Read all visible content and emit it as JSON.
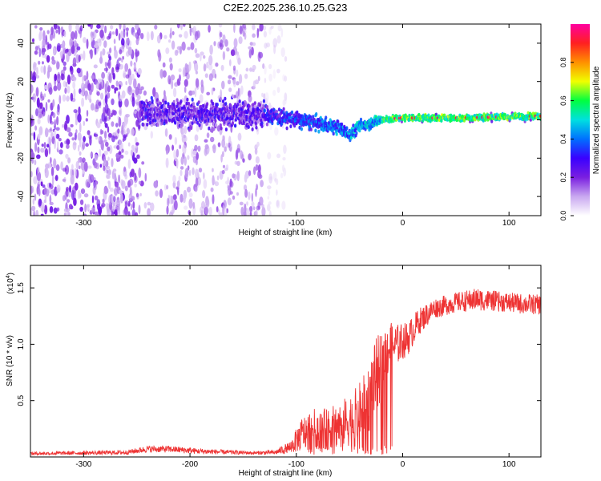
{
  "title": "C2E2.2025.236.10.25.G23",
  "colors": {
    "snr_line": "#ee3333",
    "frame": "#000000"
  },
  "chart_data": [
    {
      "type": "heatmap",
      "name": "spectrogram",
      "xlabel": "Height of straight line (km)",
      "ylabel": "Frequency (Hz)",
      "xlim": [
        -350,
        130
      ],
      "ylim": [
        -50,
        50
      ],
      "xticks": [
        -300,
        -200,
        -100,
        0,
        100
      ],
      "xtick_labels": [
        "-300",
        "-200",
        "-100",
        "0",
        "100"
      ],
      "yticks": [
        -40,
        -20,
        0,
        20,
        40
      ],
      "ytick_labels": [
        "-40",
        "-20",
        "0",
        "20",
        "40"
      ],
      "signal_track": [
        {
          "x": -245,
          "y": 4
        },
        {
          "x": -200,
          "y": 3
        },
        {
          "x": -130,
          "y": 3
        },
        {
          "x": -100,
          "y": 0
        },
        {
          "x": -80,
          "y": -2
        },
        {
          "x": -60,
          "y": -4
        },
        {
          "x": -50,
          "y": -8
        },
        {
          "x": -40,
          "y": -3
        },
        {
          "x": -20,
          "y": 0
        },
        {
          "x": 0,
          "y": 1
        },
        {
          "x": 50,
          "y": 1
        },
        {
          "x": 130,
          "y": 2
        }
      ],
      "noise_regions": [
        {
          "x_start": -350,
          "x_end": -245,
          "density": "high"
        },
        {
          "x_start": -245,
          "x_end": -130,
          "density": "medium"
        },
        {
          "x_start": -130,
          "x_end": -110,
          "density": "low"
        }
      ],
      "colorbar": {
        "label": "Normalized spectral amplitude",
        "range": [
          0,
          1
        ],
        "ticks": [
          0.0,
          0.2,
          0.4,
          0.6,
          0.8
        ],
        "tick_labels": [
          "0.0",
          "0.2",
          "0.4",
          "0.6",
          "0.8"
        ],
        "colormap": [
          "#ffffff",
          "#c9a8f0",
          "#7a1fe0",
          "#3a00ff",
          "#0070ff",
          "#00e0e0",
          "#00ff40",
          "#f0ff00",
          "#ff9000",
          "#ff2020",
          "#ff00a0"
        ]
      }
    },
    {
      "type": "line",
      "name": "snr",
      "xlabel": "Height of straight line (km)",
      "ylabel": "SNR (10 * v/v)",
      "y_multiplier": "(x10",
      "y_multiplier_exponent": "4",
      "y_multiplier_close": ")",
      "xlim": [
        -350,
        130
      ],
      "ylim": [
        0,
        17000
      ],
      "xticks": [
        -300,
        -200,
        -100,
        0,
        100
      ],
      "xtick_labels": [
        "-300",
        "-200",
        "-100",
        "0",
        "100"
      ],
      "yticks": [
        5000,
        10000,
        15000
      ],
      "ytick_labels": [
        "0.5",
        "1.0",
        "1.5"
      ],
      "envelope": [
        {
          "x": -350,
          "mean": 300,
          "spread": 150
        },
        {
          "x": -260,
          "mean": 400,
          "spread": 200
        },
        {
          "x": -240,
          "mean": 700,
          "spread": 300
        },
        {
          "x": -220,
          "mean": 700,
          "spread": 300
        },
        {
          "x": -190,
          "mean": 500,
          "spread": 250
        },
        {
          "x": -140,
          "mean": 350,
          "spread": 150
        },
        {
          "x": -120,
          "mean": 400,
          "spread": 200
        },
        {
          "x": -105,
          "mean": 900,
          "spread": 600
        },
        {
          "x": -95,
          "mean": 2000,
          "spread": 1500
        },
        {
          "x": -85,
          "mean": 2500,
          "spread": 1800
        },
        {
          "x": -70,
          "mean": 2500,
          "spread": 1800
        },
        {
          "x": -55,
          "mean": 3000,
          "spread": 2200
        },
        {
          "x": -45,
          "mean": 3500,
          "spread": 2500
        },
        {
          "x": -35,
          "mean": 4500,
          "spread": 3000
        },
        {
          "x": -25,
          "mean": 7000,
          "spread": 3500
        },
        {
          "x": -15,
          "mean": 9500,
          "spread": 2500
        },
        {
          "x": -5,
          "mean": 10000,
          "spread": 1800
        },
        {
          "x": 5,
          "mean": 10500,
          "spread": 1500
        },
        {
          "x": 15,
          "mean": 12000,
          "spread": 1200
        },
        {
          "x": 30,
          "mean": 13200,
          "spread": 900
        },
        {
          "x": 50,
          "mean": 13700,
          "spread": 900
        },
        {
          "x": 70,
          "mean": 14000,
          "spread": 1000
        },
        {
          "x": 90,
          "mean": 13800,
          "spread": 900
        },
        {
          "x": 110,
          "mean": 13600,
          "spread": 900
        },
        {
          "x": 130,
          "mean": 13500,
          "spread": 900
        }
      ]
    }
  ]
}
